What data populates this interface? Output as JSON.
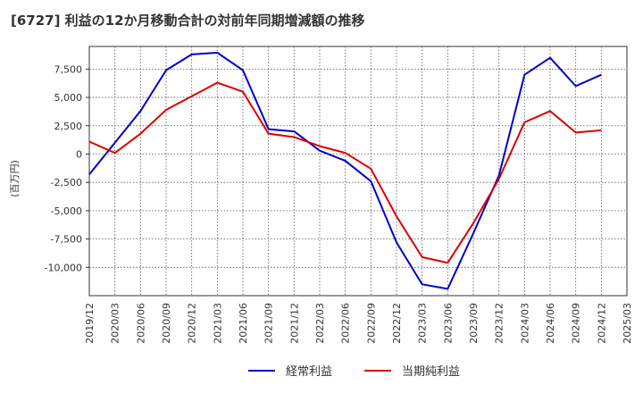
{
  "chart_data": {
    "type": "line",
    "title": "[6727]  利益の12か月移動合計の対前年同期増減額の推移",
    "xlabel": "",
    "ylabel": "(百万円)",
    "x": [
      "2019/12",
      "2020/03",
      "2020/06",
      "2020/09",
      "2020/12",
      "2021/03",
      "2021/06",
      "2021/09",
      "2021/12",
      "2022/03",
      "2022/06",
      "2022/09",
      "2022/12",
      "2023/03",
      "2023/06",
      "2023/09",
      "2023/12",
      "2024/03",
      "2024/06",
      "2024/09",
      "2024/12",
      "2025/03"
    ],
    "yticks": [
      7500,
      5000,
      2500,
      0,
      -2500,
      -5000,
      -7500,
      -10000
    ],
    "ytick_labels": [
      "7,500",
      "5,000",
      "2,500",
      "0",
      "-2,500",
      "-5,000",
      "-7,500",
      "-10,000"
    ],
    "ylim": [
      -12500,
      9500
    ],
    "grid": true,
    "legend_position": "bottom",
    "series": [
      {
        "name": "経常利益",
        "color": "#0000cc",
        "values": [
          -1800,
          1000,
          3800,
          7400,
          8800,
          8950,
          7400,
          2200,
          2000,
          300,
          -600,
          -2400,
          -7800,
          -11500,
          -11900,
          -7000,
          -1900,
          7000,
          8500,
          6000,
          7000,
          null
        ]
      },
      {
        "name": "当期純利益",
        "color": "#dd0000",
        "values": [
          1100,
          100,
          1800,
          3900,
          5100,
          6300,
          5500,
          1800,
          1500,
          700,
          100,
          -1300,
          -5500,
          -9100,
          -9600,
          -6100,
          -2200,
          2800,
          3800,
          1900,
          2100,
          null
        ]
      }
    ]
  }
}
